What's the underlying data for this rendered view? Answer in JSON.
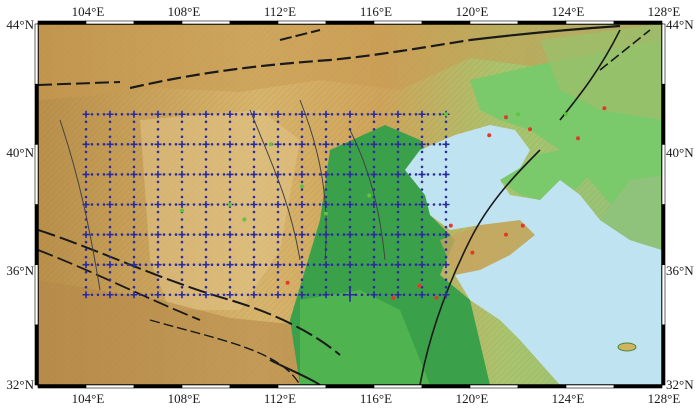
{
  "axes": {
    "lon_labels": [
      "104°E",
      "108°E",
      "112°E",
      "116°E",
      "120°E",
      "124°E",
      "128°E"
    ],
    "lat_labels": [
      "44°N",
      "40°N",
      "36°N",
      "32°N"
    ],
    "lon_range": [
      102,
      128
    ],
    "lat_range": [
      32,
      44
    ]
  },
  "colors": {
    "mountain": "#c89a52",
    "plateau": "#d8b46a",
    "plain": "#3aa14a",
    "lowland": "#7ac96a",
    "sea": "#bfe3f1",
    "station_blue": "#2d2ba0",
    "station_green": "#5ec441",
    "station_red": "#e23a2a",
    "fault": "#1a1a1a"
  },
  "stations": {
    "grid_lons": [
      104,
      105,
      106,
      107,
      108,
      109,
      110,
      111,
      112,
      113,
      114,
      115,
      116,
      117,
      118,
      119
    ],
    "grid_lats": [
      35,
      36,
      37,
      38,
      39,
      40,
      41
    ],
    "red_points": [
      [
        119.2,
        37.3
      ],
      [
        120.1,
        36.4
      ],
      [
        121.5,
        37.0
      ],
      [
        122.2,
        37.3
      ],
      [
        120.8,
        40.3
      ],
      [
        121.5,
        40.9
      ],
      [
        122.5,
        40.5
      ],
      [
        124.5,
        40.2
      ],
      [
        125.6,
        41.2
      ],
      [
        118.6,
        34.9
      ],
      [
        117.9,
        35.3
      ],
      [
        116.8,
        34.9
      ],
      [
        112.4,
        35.4
      ]
    ],
    "green_points": [
      [
        108,
        37.8
      ],
      [
        110.6,
        37.5
      ],
      [
        113,
        38.6
      ],
      [
        114,
        37.7
      ],
      [
        115.8,
        38.3
      ],
      [
        119,
        41
      ],
      [
        122,
        41
      ],
      [
        124,
        41
      ],
      [
        110,
        38
      ],
      [
        111.7,
        40
      ]
    ]
  }
}
